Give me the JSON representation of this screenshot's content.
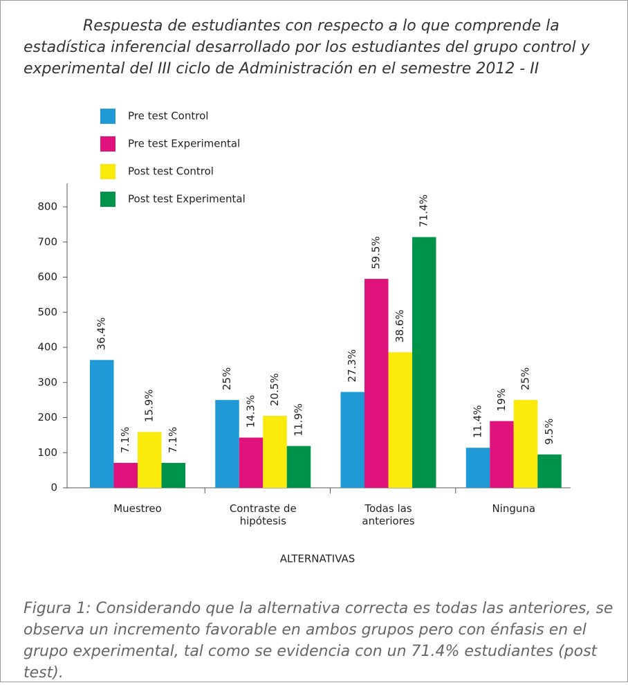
{
  "chart_data": {
    "type": "bar",
    "title": "Respuesta de estudiantes con respecto a lo que comprende la estadística inferencial desarrollado por los estudiantes del grupo control y experimental del III ciclo de Administración en el semestre 2012 - II",
    "x_label": "ALTERNATIVAS",
    "caption": "Figura 1: Considerando que la alternativa correcta es todas las anteriores, se observa un incremento favorable en ambos grupos pero con énfasis en el grupo experimental, tal como se evidencia con un 71.4% estudiantes (post test).",
    "categories": [
      "Muestreo",
      "Contraste de hipótesis",
      "Todas las anteriores",
      "Ninguna"
    ],
    "series": [
      {
        "name": "Pre test Control",
        "color": "#1f9ad6",
        "values": [
          364,
          250,
          273,
          114
        ],
        "value_labels": [
          "36.4%",
          "25%",
          "27.3%",
          "11.4%"
        ]
      },
      {
        "name": "Pre test Experimental",
        "color": "#e0137d",
        "values": [
          71,
          143,
          595,
          190
        ],
        "value_labels": [
          "7.1%",
          "14.3%",
          "59.5%",
          "19%"
        ]
      },
      {
        "name": "Post test Control",
        "color": "#f9ea0b",
        "values": [
          159,
          205,
          386,
          250
        ],
        "value_labels": [
          "15.9%",
          "20.5%",
          "38.6%",
          "25%"
        ]
      },
      {
        "name": "Post test Experimental",
        "color": "#00934a",
        "values": [
          71,
          119,
          714,
          95
        ],
        "value_labels": [
          "7.1%",
          "11.9%",
          "71.4%",
          "9.5%"
        ]
      }
    ],
    "ylim": [
      0,
      800
    ],
    "yticks": [
      0,
      100,
      200,
      300,
      400,
      500,
      600,
      700,
      800
    ],
    "grid": false
  }
}
